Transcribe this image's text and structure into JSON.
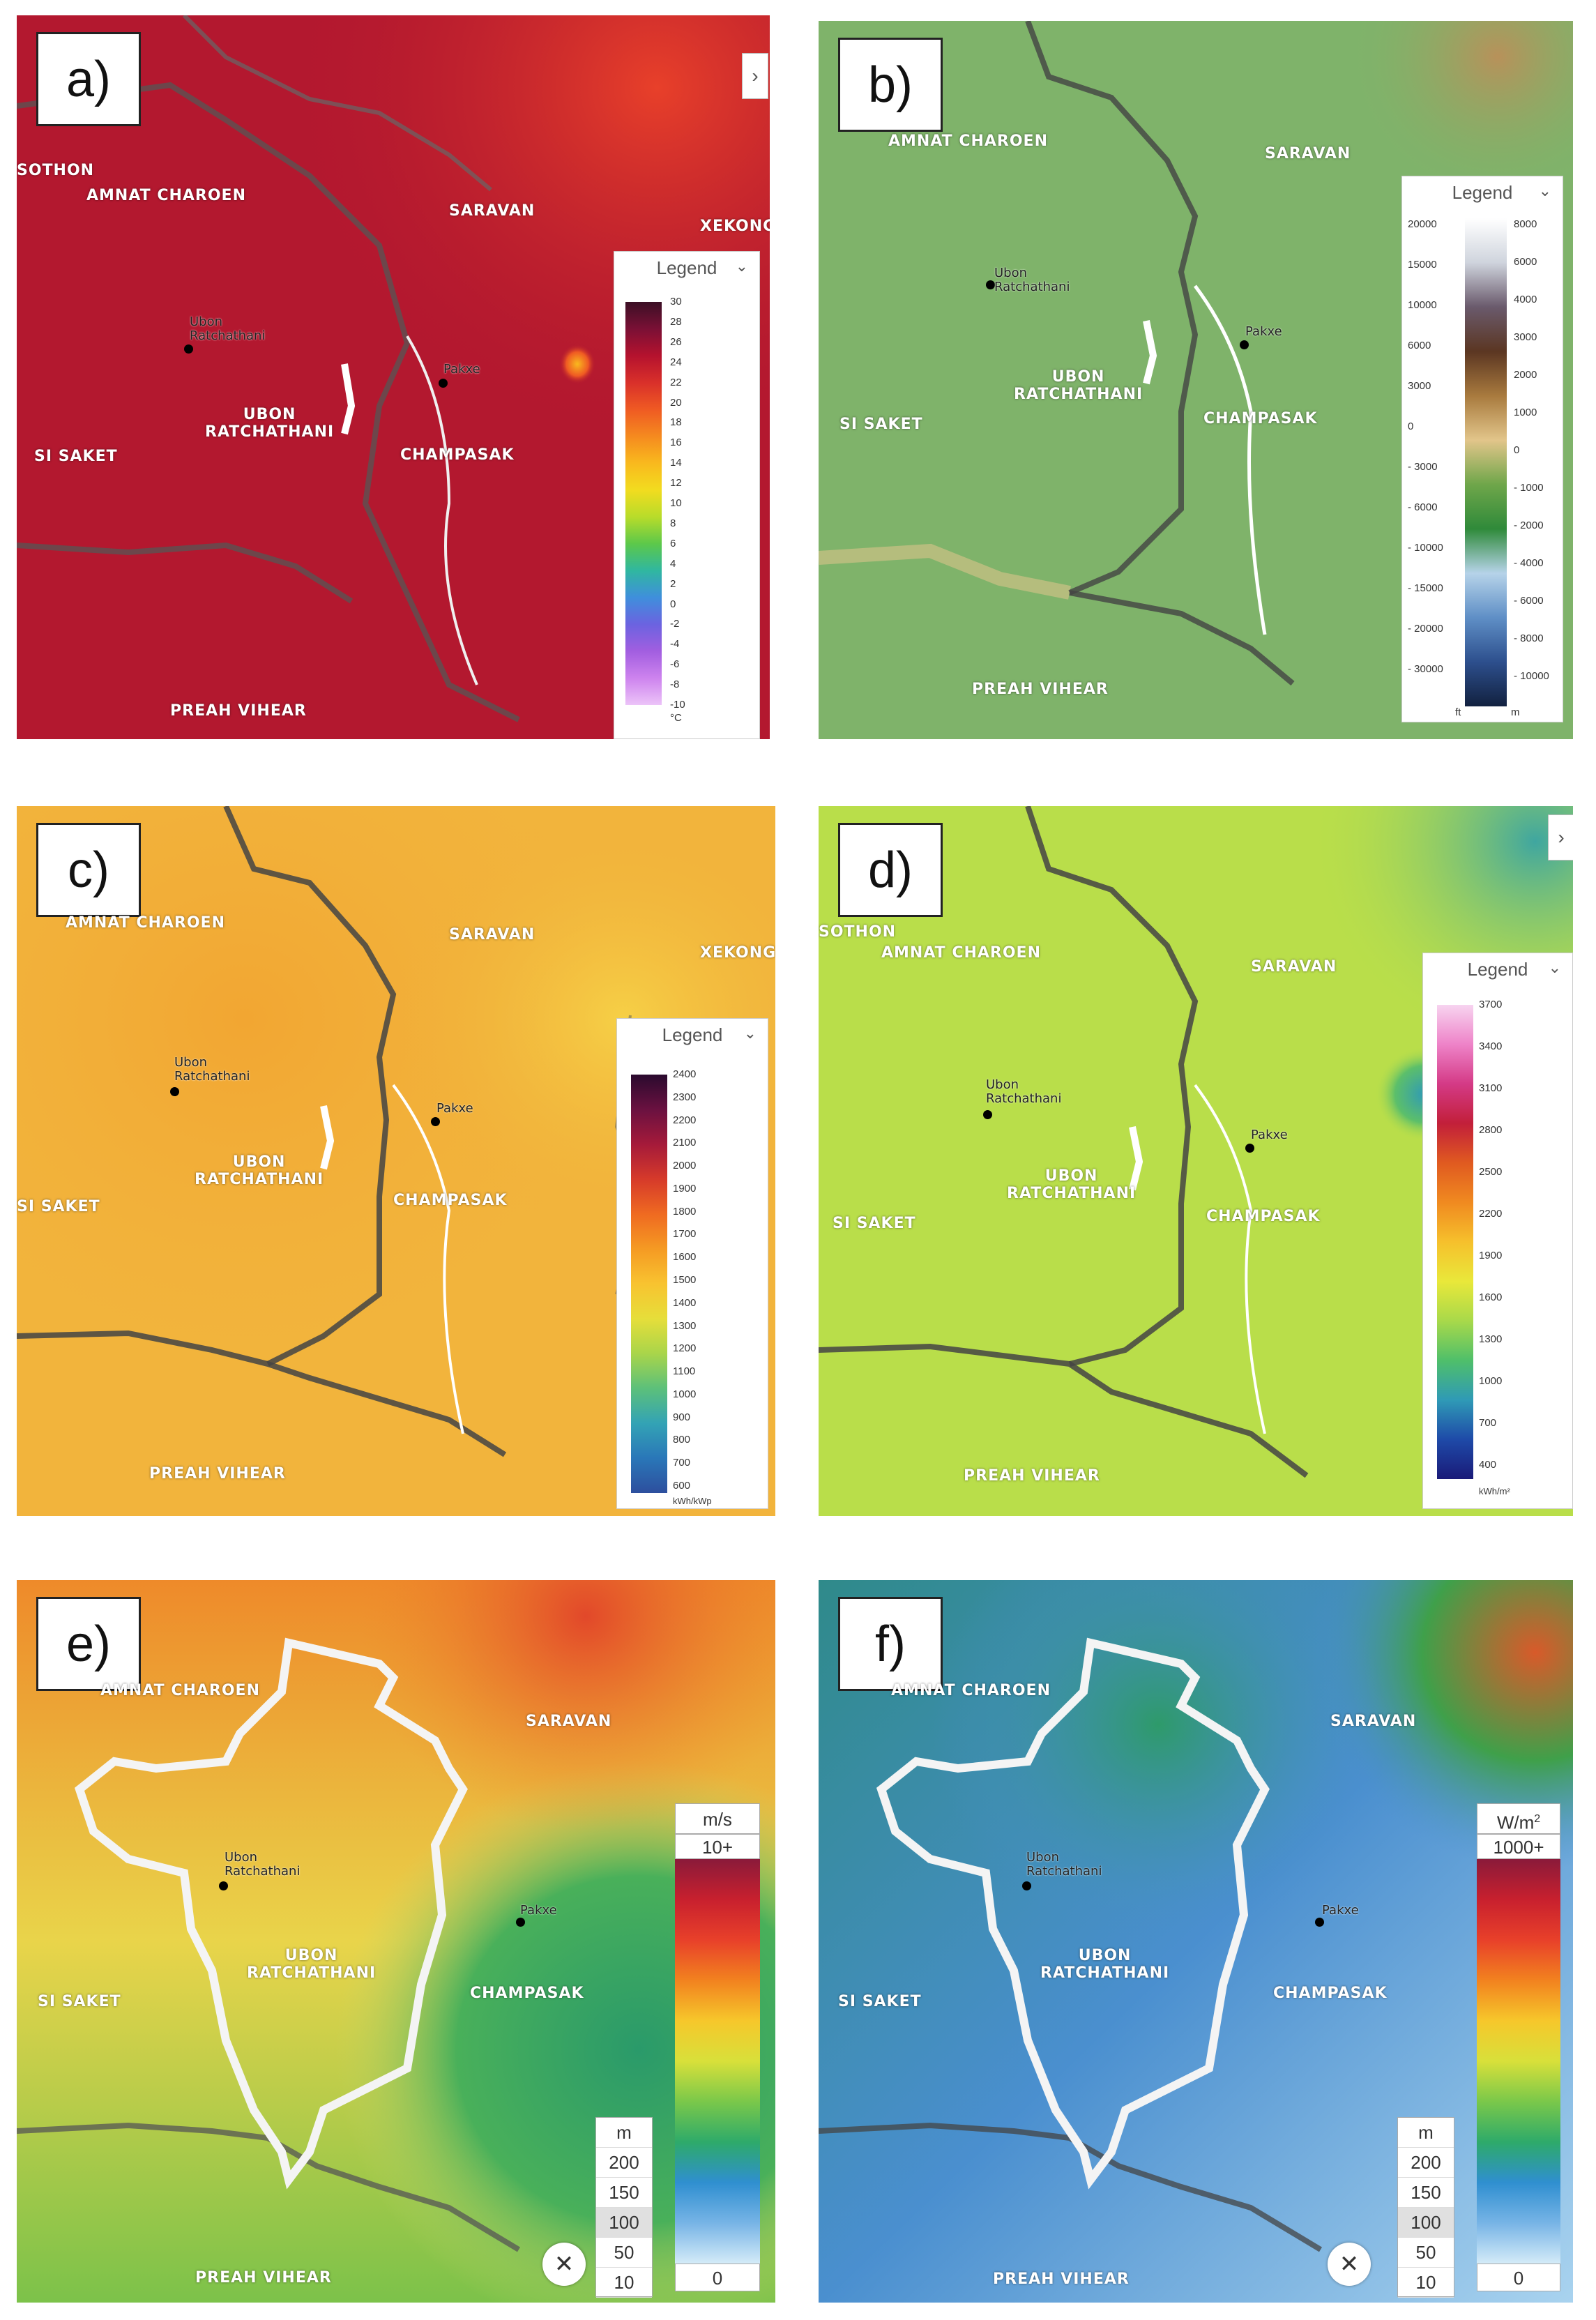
{
  "panels": {
    "a": {
      "label": "a)",
      "places": {
        "sothon": "SOTHON",
        "amnat": "AMNAT CHAROEN",
        "saravan": "SARAVAN",
        "xekong": "XEKONG",
        "ubon_prov": "UBON\nRATCHATHANI",
        "sisaket": "SI SAKET",
        "champasak": "CHAMPASAK",
        "preah": "PREAH VIHEAR"
      },
      "cities": {
        "ubon": "Ubon\nRatchathani",
        "pakxe": "Pakxe"
      },
      "legend": {
        "title": "Legend",
        "ticks": [
          "30",
          "28",
          "26",
          "24",
          "22",
          "20",
          "18",
          "16",
          "14",
          "12",
          "10",
          "8",
          "6",
          "4",
          "2",
          "0",
          "-2",
          "-4",
          "-6",
          "-8",
          "-10"
        ],
        "unit": "°C"
      },
      "colors": [
        "#3b0f25",
        "#7a1035",
        "#b5122e",
        "#d9302a",
        "#ef5a23",
        "#f58a1f",
        "#f9b91e",
        "#f2dc1f",
        "#b8dc2a",
        "#5cc84a",
        "#30b7a0",
        "#3f8fdc",
        "#6b63e0",
        "#a25ee0",
        "#cd83ee",
        "#ecc3f8"
      ]
    },
    "b": {
      "label": "b)",
      "places": {
        "amnat": "AMNAT CHAROEN",
        "saravan": "SARAVAN",
        "ubon_prov": "UBON\nRATCHATHANI",
        "sisaket": "SI SAKET",
        "champasak": "CHAMPASAK",
        "preah": "PREAH VIHEAR"
      },
      "cities": {
        "ubon": "Ubon\nRatchathani",
        "pakxe": "Pakxe"
      },
      "legend": {
        "title": "Legend",
        "ft_ticks": [
          "20000",
          "15000",
          "10000",
          "6000",
          "3000",
          "0",
          "3000",
          "6000",
          "10000",
          "15000",
          "20000",
          "30000"
        ],
        "ft_signs": [
          "",
          "",
          "",
          "",
          "",
          "",
          "-",
          "-",
          "-",
          "-",
          "-",
          "-"
        ],
        "m_ticks": [
          "8000",
          "6000",
          "4000",
          "3000",
          "2000",
          "1000",
          "0",
          "1000",
          "2000",
          "4000",
          "6000",
          "8000",
          "10000"
        ],
        "m_signs": [
          "",
          "",
          "",
          "",
          "",
          "",
          "",
          "-",
          "-",
          "-",
          "-",
          "-",
          "-"
        ],
        "ft_unit": "ft",
        "m_unit": "m"
      },
      "colors": [
        "#ffffff",
        "#cfd4dd",
        "#6a5a6c",
        "#5b3622",
        "#a87a3e",
        "#e2c58a",
        "#6fa64a",
        "#2f8a3a",
        "#b6d3e9",
        "#5f8fc6",
        "#2d4f8d",
        "#12213f"
      ]
    },
    "c": {
      "label": "c)",
      "places": {
        "amnat": "AMNAT CHAROEN",
        "saravan": "SARAVAN",
        "xekong": "XEKONG",
        "ubon_prov": "UBON\nRATCHATHANI",
        "sisaket": "SI SAKET",
        "champasak": "CHAMPASAK",
        "preah": "PREAH VIHEAR"
      },
      "cities": {
        "ubon": "Ubon\nRatchathani",
        "pakxe": "Pakxe"
      },
      "legend": {
        "title": "Legend",
        "ticks": [
          "2400",
          "2300",
          "2200",
          "2100",
          "2000",
          "1900",
          "1800",
          "1700",
          "1600",
          "1500",
          "1400",
          "1300",
          "1200",
          "1100",
          "1000",
          "900",
          "800",
          "700",
          "600"
        ],
        "unit": "kWh/kWp"
      },
      "colors": [
        "#2a0a2e",
        "#6a1140",
        "#a51a3a",
        "#d63a2a",
        "#ef6a21",
        "#f59a23",
        "#f8c330",
        "#e6de3a",
        "#a9d54a",
        "#5cc07a",
        "#33a3b5",
        "#2a77b8",
        "#2d4f9e"
      ]
    },
    "d": {
      "label": "d)",
      "places": {
        "sothon": "SOTHON",
        "amnat": "AMNAT CHAROEN",
        "saravan": "SARAVAN",
        "ubon_prov": "UBON\nRATCHATHANI",
        "sisaket": "SI SAKET",
        "champasak": "CHAMPASAK",
        "preah": "PREAH VIHEAR"
      },
      "cities": {
        "ubon": "Ubon\nRatchathani",
        "pakxe": "Pakxe"
      },
      "legend": {
        "title": "Legend",
        "ticks": [
          "3700",
          "3400",
          "3100",
          "2800",
          "2500",
          "2200",
          "1900",
          "1600",
          "1300",
          "1000",
          "700",
          "400"
        ],
        "unit": "kWh/m²"
      },
      "colors": [
        "#f7d4f0",
        "#ee83c8",
        "#d43a86",
        "#c21f3a",
        "#e05a20",
        "#f08a20",
        "#f6c02c",
        "#e9e83a",
        "#a8d94a",
        "#4fbf6a",
        "#2f9ab6",
        "#1e4aa8",
        "#1a1a78"
      ]
    },
    "e": {
      "label": "e)",
      "places": {
        "amnat": "AMNAT CHAROEN",
        "saravan": "SARAVAN",
        "ubon_prov": "UBON\nRATCHATHANI",
        "sisaket": "SI SAKET",
        "champasak": "CHAMPASAK",
        "preah": "PREAH VIHEAR"
      },
      "cities": {
        "ubon": "Ubon\nRatchathani",
        "pakxe": "Pakxe"
      },
      "legend": {
        "unit": "m/s",
        "top": "10+",
        "bottom": "0"
      },
      "heights": {
        "unit": "m",
        "values": [
          "200",
          "150",
          "100",
          "50",
          "10"
        ],
        "selected": "100"
      },
      "colors": [
        "#8a1a3a",
        "#c8202e",
        "#e8402a",
        "#f2821f",
        "#f6c72b",
        "#d8e03a",
        "#7ac84a",
        "#2eaa6a",
        "#2f8fd0",
        "#77b4e6",
        "#d4ebf8"
      ]
    },
    "f": {
      "label": "f)",
      "places": {
        "amnat": "AMNAT CHAROEN",
        "saravan": "SARAVAN",
        "ubon_prov": "UBON\nRATCHATHANI",
        "sisaket": "SI SAKET",
        "champasak": "CHAMPASAK",
        "preah": "PREAH VIHEAR"
      },
      "cities": {
        "ubon": "Ubon\nRatchathani",
        "pakxe": "Pakxe"
      },
      "legend": {
        "unit": "W/m",
        "unit_sup": "2",
        "top": "1000+",
        "bottom": "0"
      },
      "heights": {
        "unit": "m",
        "values": [
          "200",
          "150",
          "100",
          "50",
          "10"
        ],
        "selected": "100"
      },
      "colors": [
        "#8a1a3a",
        "#c8202e",
        "#e8402a",
        "#f2821f",
        "#f6c72b",
        "#d8e03a",
        "#7ac84a",
        "#2eaa6a",
        "#2f8fd0",
        "#77b4e6",
        "#d4ebf8"
      ]
    }
  },
  "backgrounds": {
    "a": "#b3182f",
    "b": "#7fb36a",
    "c": "#f0b03a",
    "d": "#b9de4a",
    "e": "#c9d66a",
    "f": "#4a8fcf"
  }
}
